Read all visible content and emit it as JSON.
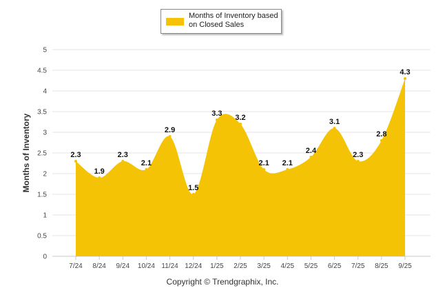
{
  "chart_data": {
    "type": "area",
    "legend": "Months of Inventory based on Closed Sales",
    "ylabel": "Months of Inventory",
    "xlabel": "",
    "categories": [
      "7/24",
      "8/24",
      "9/24",
      "10/24",
      "11/24",
      "12/24",
      "1/25",
      "2/25",
      "3/25",
      "4/25",
      "5/25",
      "6/25",
      "7/25",
      "8/25",
      "9/25"
    ],
    "values": [
      2.3,
      1.9,
      2.3,
      2.1,
      2.9,
      1.5,
      3.3,
      3.2,
      2.1,
      2.1,
      2.4,
      3.1,
      2.3,
      2.8,
      4.3
    ],
    "ylim": [
      0,
      5
    ],
    "yticks": [
      "0",
      "0.5",
      "1",
      "1.5",
      "2",
      "2.5",
      "3",
      "3.5",
      "4",
      "4.5",
      "5"
    ],
    "grid": true,
    "color": "#F5C305",
    "legend_position": "top-center"
  },
  "footer": "Copyright © Trendgraphix, Inc."
}
